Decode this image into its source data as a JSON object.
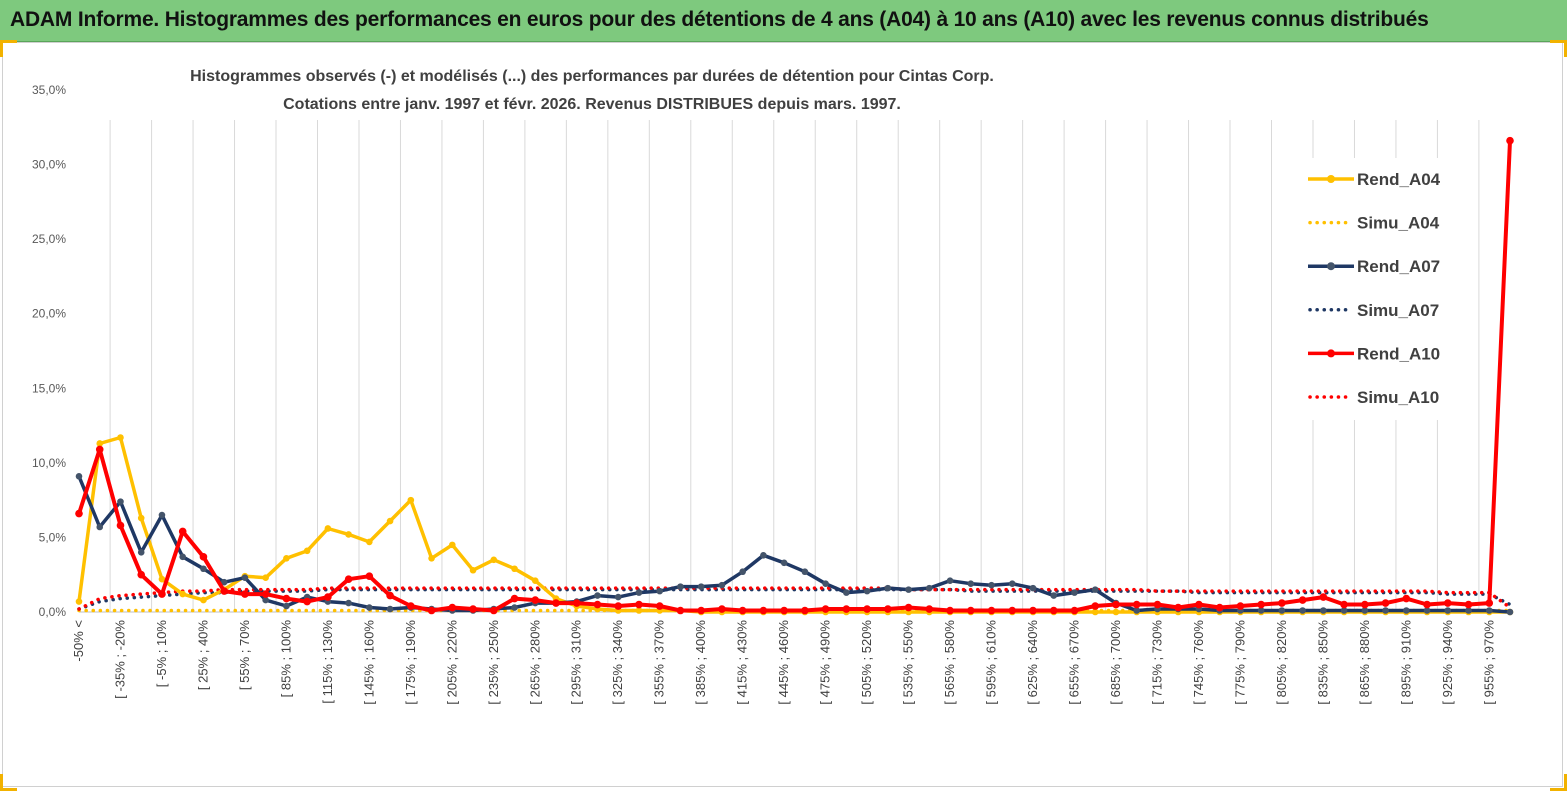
{
  "banner": {
    "title": "ADAM Informe. Histogrammes des performances en euros pour des détentions de 4 ans (A04) à 10 ans (A10) avec les revenus connus distribués"
  },
  "colors": {
    "banner_bg": "#7ec97e",
    "A04": "#ffc000",
    "A07": "#1f3864",
    "A07_marker": "#44546a",
    "A10": "#ff0000"
  },
  "chart_data": {
    "type": "line",
    "title": "Histogrammes observés (-) et modélisés (...) des performances par durées de détention pour Cintas Corp.",
    "subtitle": "Cotations entre janv. 1997 et févr. 2026. Revenus DISTRIBUES depuis mars. 1997.",
    "xlabel": "",
    "ylabel": "",
    "ylim": [
      0,
      35
    ],
    "y_ticks": [
      "0,0%",
      "5,0%",
      "10,0%",
      "15,0%",
      "20,0%",
      "25,0%",
      "30,0%",
      "35,0%"
    ],
    "grid": "vertical",
    "legend_position": "right",
    "x_tick_labels": [
      "-50% <",
      "[ -35% ; -20%",
      "[ -5% ; 10%",
      "[ 25% ; 40%",
      "[ 55% ; 70%",
      "[ 85% ; 100%",
      "[ 115% ; 130%",
      "[ 145% ; 160%",
      "[ 175% ; 190%",
      "[ 205% ; 220%",
      "[ 235% ; 250%",
      "[ 265% ; 280%",
      "[ 295% ; 310%",
      "[ 325% ; 340%",
      "[ 355% ; 370%",
      "[ 385% ; 400%",
      "[ 415% ; 430%",
      "[ 445% ; 460%",
      "[ 475% ; 490%",
      "[ 505% ; 520%",
      "[ 535% ; 550%",
      "[ 565% ; 580%",
      "[ 595% ; 610%",
      "[ 625% ; 640%",
      "[ 655% ; 670%",
      "[ 685% ; 700%",
      "[ 715% ; 730%",
      "[ 745% ; 760%",
      "[ 775% ; 790%",
      "[ 805% ; 820%",
      "[ 835% ; 850%",
      "[ 865% ; 880%",
      "[ 895% ; 910%",
      "[ 925% ; 940%",
      "[ 955% ; 970%"
    ],
    "category_count": 70,
    "series": [
      {
        "name": "Rend_A04",
        "style": "solid",
        "color": "#ffc000",
        "values": [
          0.7,
          11.3,
          11.7,
          6.3,
          2.2,
          1.2,
          0.8,
          1.5,
          2.4,
          2.3,
          3.6,
          4.1,
          5.6,
          5.2,
          4.7,
          6.1,
          7.5,
          3.6,
          4.5,
          2.8,
          3.5,
          2.9,
          2.1,
          0.9,
          0.4,
          0.2,
          0.1,
          0.1,
          0.1,
          0.1,
          0,
          0,
          0,
          0,
          0,
          0,
          0,
          0,
          0,
          0,
          0,
          0,
          0,
          0,
          0,
          0,
          0,
          0,
          0,
          0,
          0,
          0,
          0,
          0,
          0,
          0,
          0,
          0,
          0,
          0,
          0,
          0,
          0,
          0,
          0,
          0,
          0,
          0,
          0,
          0
        ]
      },
      {
        "name": "Simu_A04",
        "style": "dotted",
        "color": "#ffc000",
        "values": [
          0.1,
          0.1,
          0.1,
          0.1,
          0.1,
          0.1,
          0.1,
          0.1,
          0.1,
          0.1,
          0.1,
          0.1,
          0.1,
          0.1,
          0.1,
          0.1,
          0.1,
          0.1,
          0.1,
          0.1,
          0.1,
          0.1,
          0.1,
          0.1,
          0.1,
          0.1,
          0.1,
          0.1,
          0.1,
          0.1,
          0.1,
          0.1,
          0.1,
          0.1,
          0.1,
          0.1,
          0.1,
          0.1,
          0.1,
          0.1,
          0.1,
          0.1,
          0.1,
          0.1,
          0.1,
          0.1,
          0.1,
          0.1,
          0.1,
          0.1,
          0.1,
          0.1,
          0.1,
          0.1,
          0.1,
          0.1,
          0.1,
          0.1,
          0.1,
          0.1,
          0.1,
          0.1,
          0.1,
          0.1,
          0.1,
          0.1,
          0.1,
          0.1,
          0.1,
          0.1
        ]
      },
      {
        "name": "Rend_A07",
        "style": "solid",
        "color": "#1f3864",
        "values": [
          9.1,
          5.7,
          7.4,
          4.0,
          6.5,
          3.7,
          2.9,
          2.0,
          2.3,
          0.8,
          0.4,
          1.0,
          0.7,
          0.6,
          0.3,
          0.2,
          0.3,
          0.2,
          0.1,
          0.1,
          0.2,
          0.3,
          0.6,
          0.6,
          0.7,
          1.1,
          1.0,
          1.3,
          1.4,
          1.7,
          1.7,
          1.8,
          2.7,
          3.8,
          3.3,
          2.7,
          1.9,
          1.3,
          1.4,
          1.6,
          1.5,
          1.6,
          2.1,
          1.9,
          1.8,
          1.9,
          1.6,
          1.1,
          1.3,
          1.5,
          0.6,
          0.1,
          0.2,
          0.2,
          0.2,
          0.1,
          0.1,
          0.1,
          0.1,
          0.1,
          0.1,
          0.1,
          0.1,
          0.1,
          0.1,
          0.1,
          0.1,
          0.1,
          0.1,
          0
        ]
      },
      {
        "name": "Simu_A07",
        "style": "dotted",
        "color": "#1f3864",
        "values": [
          0.2,
          0.7,
          0.9,
          1.0,
          1.1,
          1.2,
          1.3,
          1.3,
          1.4,
          1.4,
          1.4,
          1.4,
          1.5,
          1.5,
          1.5,
          1.5,
          1.5,
          1.5,
          1.5,
          1.5,
          1.5,
          1.5,
          1.5,
          1.5,
          1.5,
          1.5,
          1.5,
          1.5,
          1.5,
          1.5,
          1.5,
          1.5,
          1.5,
          1.5,
          1.5,
          1.5,
          1.5,
          1.5,
          1.5,
          1.5,
          1.5,
          1.5,
          1.5,
          1.4,
          1.4,
          1.4,
          1.4,
          1.4,
          1.4,
          1.4,
          1.4,
          1.4,
          1.4,
          1.4,
          1.3,
          1.3,
          1.3,
          1.3,
          1.3,
          1.3,
          1.3,
          1.3,
          1.3,
          1.3,
          1.3,
          1.3,
          1.2,
          1.2,
          1.2,
          0.5
        ]
      },
      {
        "name": "Rend_A10",
        "style": "solid",
        "color": "#ff0000",
        "values": [
          6.6,
          10.9,
          5.8,
          2.5,
          1.2,
          5.4,
          3.7,
          1.4,
          1.2,
          1.2,
          0.9,
          0.7,
          1.0,
          2.2,
          2.4,
          1.1,
          0.4,
          0.1,
          0.3,
          0.2,
          0.1,
          0.9,
          0.8,
          0.6,
          0.6,
          0.5,
          0.4,
          0.5,
          0.4,
          0.1,
          0.1,
          0.2,
          0.1,
          0.1,
          0.1,
          0.1,
          0.2,
          0.2,
          0.2,
          0.2,
          0.3,
          0.2,
          0.1,
          0.1,
          0.1,
          0.1,
          0.1,
          0.1,
          0.1,
          0.4,
          0.5,
          0.5,
          0.5,
          0.3,
          0.5,
          0.3,
          0.4,
          0.5,
          0.6,
          0.8,
          1.0,
          0.5,
          0.5,
          0.6,
          0.9,
          0.5,
          0.6,
          0.5,
          0.6,
          31.6
        ]
      },
      {
        "name": "Simu_A10",
        "style": "dotted",
        "color": "#ff0000",
        "values": [
          0.2,
          0.9,
          1.1,
          1.2,
          1.3,
          1.4,
          1.4,
          1.5,
          1.5,
          1.5,
          1.5,
          1.5,
          1.6,
          1.6,
          1.6,
          1.6,
          1.6,
          1.6,
          1.6,
          1.6,
          1.6,
          1.6,
          1.6,
          1.6,
          1.6,
          1.6,
          1.6,
          1.6,
          1.6,
          1.6,
          1.6,
          1.6,
          1.6,
          1.6,
          1.6,
          1.6,
          1.6,
          1.6,
          1.6,
          1.6,
          1.5,
          1.5,
          1.5,
          1.5,
          1.5,
          1.5,
          1.5,
          1.5,
          1.5,
          1.5,
          1.5,
          1.5,
          1.4,
          1.4,
          1.4,
          1.4,
          1.4,
          1.4,
          1.4,
          1.4,
          1.4,
          1.4,
          1.4,
          1.4,
          1.4,
          1.4,
          1.3,
          1.3,
          1.3,
          0.3
        ]
      }
    ]
  }
}
